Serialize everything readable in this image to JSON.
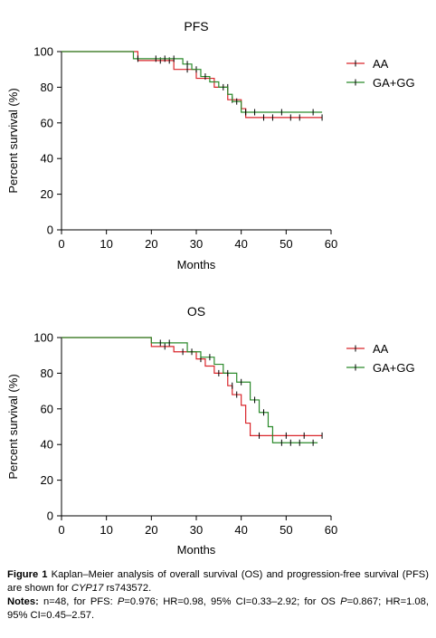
{
  "chart_data": [
    {
      "type": "line",
      "title": "PFS",
      "xlabel": "Months",
      "ylabel": "Percent survival (%)",
      "xlim": [
        0,
        60
      ],
      "ylim": [
        0,
        100
      ],
      "xticks": [
        0,
        10,
        20,
        30,
        40,
        50,
        60
      ],
      "yticks": [
        0,
        20,
        40,
        60,
        80,
        100
      ],
      "grid": false,
      "legend_position": "top-right",
      "series": [
        {
          "name": "AA",
          "color": "#d9262b",
          "steps": [
            [
              0,
              100
            ],
            [
              17,
              95
            ],
            [
              25,
              90
            ],
            [
              30,
              85
            ],
            [
              34,
              80
            ],
            [
              37,
              73
            ],
            [
              40,
              68
            ],
            [
              41,
              63
            ],
            [
              58,
              63
            ]
          ],
          "censored": [
            [
              22,
              95
            ],
            [
              24,
              95
            ],
            [
              28,
              90
            ],
            [
              30,
              90
            ],
            [
              37,
              80
            ],
            [
              38,
              73
            ],
            [
              45,
              63
            ],
            [
              47,
              63
            ],
            [
              51,
              63
            ],
            [
              53,
              63
            ],
            [
              58,
              63
            ]
          ]
        },
        {
          "name": "GA+GG",
          "color": "#2b8a2b",
          "steps": [
            [
              0,
              100
            ],
            [
              16,
              96
            ],
            [
              27,
              93
            ],
            [
              29,
              90
            ],
            [
              31,
              86
            ],
            [
              33,
              83
            ],
            [
              35,
              80
            ],
            [
              37,
              76
            ],
            [
              38,
              72
            ],
            [
              40,
              66
            ],
            [
              58,
              66
            ]
          ],
          "censored": [
            [
              17,
              96
            ],
            [
              21,
              96
            ],
            [
              23,
              96
            ],
            [
              25,
              96
            ],
            [
              28,
              93
            ],
            [
              32,
              86
            ],
            [
              36,
              80
            ],
            [
              39,
              72
            ],
            [
              41,
              66
            ],
            [
              43,
              66
            ],
            [
              49,
              66
            ],
            [
              56,
              66
            ]
          ]
        }
      ]
    },
    {
      "type": "line",
      "title": "OS",
      "xlabel": "Months",
      "ylabel": "Percent survival (%)",
      "xlim": [
        0,
        60
      ],
      "ylim": [
        0,
        100
      ],
      "xticks": [
        0,
        10,
        20,
        30,
        40,
        50,
        60
      ],
      "yticks": [
        0,
        20,
        40,
        60,
        80,
        100
      ],
      "grid": false,
      "legend_position": "top-right",
      "series": [
        {
          "name": "AA",
          "color": "#d9262b",
          "steps": [
            [
              0,
              100
            ],
            [
              20,
              95
            ],
            [
              25,
              92
            ],
            [
              30,
              88
            ],
            [
              32,
              84
            ],
            [
              34,
              80
            ],
            [
              37,
              73
            ],
            [
              38,
              68
            ],
            [
              40,
              62
            ],
            [
              41,
              52
            ],
            [
              42,
              45
            ],
            [
              58,
              45
            ]
          ],
          "censored": [
            [
              23,
              95
            ],
            [
              27,
              92
            ],
            [
              31,
              88
            ],
            [
              35,
              80
            ],
            [
              38,
              73
            ],
            [
              39,
              68
            ],
            [
              44,
              45
            ],
            [
              47,
              45
            ],
            [
              50,
              45
            ],
            [
              54,
              45
            ],
            [
              58,
              45
            ]
          ]
        },
        {
          "name": "GA+GG",
          "color": "#2b8a2b",
          "steps": [
            [
              0,
              100
            ],
            [
              20,
              97
            ],
            [
              28,
              92
            ],
            [
              31,
              89
            ],
            [
              34,
              85
            ],
            [
              36,
              80
            ],
            [
              39,
              75
            ],
            [
              42,
              65
            ],
            [
              44,
              58
            ],
            [
              46,
              50
            ],
            [
              47,
              41
            ],
            [
              57,
              41
            ]
          ],
          "censored": [
            [
              22,
              97
            ],
            [
              24,
              97
            ],
            [
              29,
              92
            ],
            [
              33,
              89
            ],
            [
              37,
              80
            ],
            [
              40,
              75
            ],
            [
              43,
              65
            ],
            [
              45,
              58
            ],
            [
              49,
              41
            ],
            [
              51,
              41
            ],
            [
              53,
              41
            ],
            [
              56,
              41
            ]
          ]
        }
      ]
    }
  ],
  "caption": {
    "figure_label": "Figure 1",
    "text_before_italic": " Kaplan–Meier analysis of overall survival (OS) and progression-free survival (PFS) are shown for ",
    "gene": "CYP17",
    "text_after_italic": " rs743572.",
    "notes_label": "Notes:",
    "notes_part1": " n=48, for PFS: ",
    "p1_label": "P",
    "notes_part2": "=0.976; HR=0.98, 95% CI=0.33–2.92; for OS ",
    "p2_label": "P",
    "notes_part3": "=0.867; HR=1.08, 95% CI=0.45–2.57."
  }
}
